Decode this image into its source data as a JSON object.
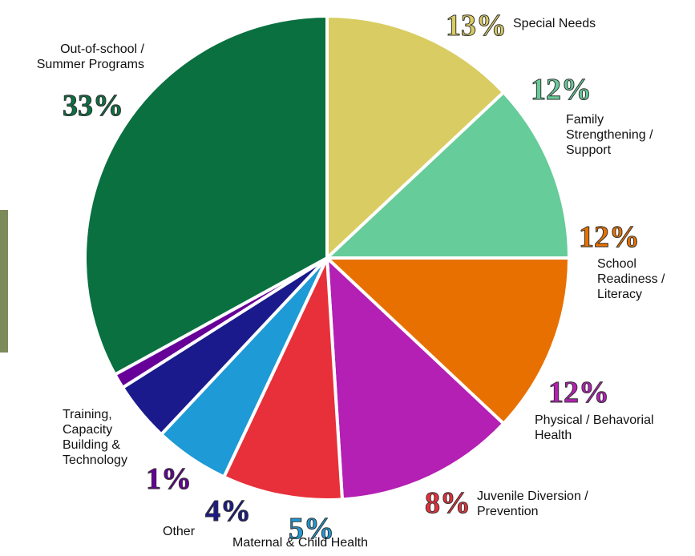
{
  "chart_data": {
    "type": "pie",
    "categories": [
      "Special Needs",
      "Family\nStrengthening /\nSupport",
      "School\nReadiness /\nLiteracy",
      "Physical / Behavorial\nHealth",
      "Juvenile Diversion /\nPrevention",
      "Maternal & Child Health",
      "Other",
      "Training,\nCapacity\nBuilding &\nTechnology",
      "Out-of-school /\nSummer Programs"
    ],
    "values": [
      13,
      12,
      12,
      12,
      8,
      5,
      4,
      1,
      33
    ],
    "value_labels": [
      "13%",
      "12%",
      "12%",
      "12%",
      "8%",
      "5%",
      "4%",
      "1%",
      "33%"
    ],
    "colors": [
      "#d9cc62",
      "#66cc99",
      "#e87000",
      "#b41fb4",
      "#e8303a",
      "#1e9ad6",
      "#1a1a8c",
      "#660099",
      "#0a7040"
    ]
  }
}
